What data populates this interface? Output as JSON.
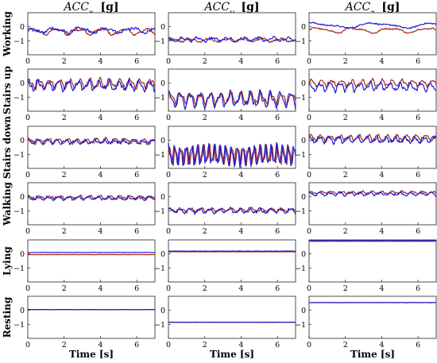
{
  "chart_data": {
    "type": "line",
    "layout": "6x3 grid of line subplots",
    "column_titles": [
      {
        "base": "ACC",
        "sub": "x",
        "unit": "[g]"
      },
      {
        "base": "ACC",
        "sub": "y",
        "unit": "[g]"
      },
      {
        "base": "ACC",
        "sub": "z",
        "unit": "[g]"
      }
    ],
    "row_labels": [
      "Working",
      "Stairs up",
      "Stairs down",
      "Walking",
      "Lying",
      "Resting"
    ],
    "xlabel": "Time [s]",
    "xlim": [
      0,
      7
    ],
    "xticks": [
      0,
      2,
      4,
      6
    ],
    "ylim": [
      -2,
      1
    ],
    "yticks": [
      0,
      -1
    ],
    "grid": false,
    "series_colors": [
      "#a62a1e",
      "#1c1cd6"
    ],
    "panels": [
      [
        {
          "series": [
            {
              "mean": -0.35,
              "amp": 0.18,
              "freq": 0.8,
              "noise": 0.08,
              "phase": 0.0
            },
            {
              "mean": -0.25,
              "amp": 0.15,
              "freq": 0.7,
              "noise": 0.1,
              "phase": 1.5
            }
          ]
        },
        {
          "series": [
            {
              "mean": -0.95,
              "amp": 0.1,
              "freq": 1.0,
              "noise": 0.07,
              "phase": 0.4
            },
            {
              "mean": -0.9,
              "amp": 0.12,
              "freq": 1.2,
              "noise": 0.08,
              "phase": 2.0
            }
          ]
        },
        {
          "series": [
            {
              "mean": -0.25,
              "amp": 0.15,
              "freq": 0.5,
              "noise": 0.05,
              "phase": 0.0
            },
            {
              "mean": 0.1,
              "amp": 0.15,
              "freq": 0.3,
              "noise": 0.05,
              "phase": 1.0
            }
          ]
        }
      ],
      [
        {
          "series": [
            {
              "mean": -0.05,
              "amp": 0.28,
              "freq": 1.8,
              "noise": 0.1,
              "phase": 0.5
            },
            {
              "mean": -0.15,
              "amp": 0.3,
              "freq": 1.8,
              "noise": 0.12,
              "phase": 1.4
            }
          ]
        },
        {
          "series": [
            {
              "mean": -1.1,
              "amp": 0.35,
              "freq": 1.8,
              "noise": 0.1,
              "phase": 0.2
            },
            {
              "mean": -1.15,
              "amp": 0.45,
              "freq": 1.8,
              "noise": 0.12,
              "phase": 0.9
            }
          ]
        },
        {
          "series": [
            {
              "mean": 0.0,
              "amp": 0.2,
              "freq": 1.8,
              "noise": 0.08,
              "phase": 0.0
            },
            {
              "mean": -0.25,
              "amp": 0.25,
              "freq": 1.8,
              "noise": 0.12,
              "phase": 1.2
            }
          ]
        }
      ],
      [
        {
          "series": [
            {
              "mean": -0.05,
              "amp": 0.15,
              "freq": 1.9,
              "noise": 0.08,
              "phase": 0.3
            },
            {
              "mean": -0.1,
              "amp": 0.12,
              "freq": 1.9,
              "noise": 0.08,
              "phase": 1.6
            }
          ]
        },
        {
          "series": [
            {
              "mean": -1.05,
              "amp": 0.55,
              "freq": 3.2,
              "noise": 0.08,
              "phase": 0.0
            },
            {
              "mean": -1.05,
              "amp": 0.6,
              "freq": 3.2,
              "noise": 0.08,
              "phase": 1.1
            }
          ]
        },
        {
          "series": [
            {
              "mean": 0.15,
              "amp": 0.18,
              "freq": 1.9,
              "noise": 0.08,
              "phase": 0.0
            },
            {
              "mean": 0.05,
              "amp": 0.2,
              "freq": 1.9,
              "noise": 0.1,
              "phase": 1.3
            }
          ]
        }
      ],
      [
        {
          "series": [
            {
              "mean": -0.05,
              "amp": 0.1,
              "freq": 1.8,
              "noise": 0.06,
              "phase": 0.4
            },
            {
              "mean": -0.1,
              "amp": 0.1,
              "freq": 1.8,
              "noise": 0.07,
              "phase": 1.6
            }
          ]
        },
        {
          "series": [
            {
              "mean": -0.95,
              "amp": 0.12,
              "freq": 1.8,
              "noise": 0.07,
              "phase": 0.0
            },
            {
              "mean": -1.0,
              "amp": 0.14,
              "freq": 1.8,
              "noise": 0.08,
              "phase": 1.0
            }
          ]
        },
        {
          "series": [
            {
              "mean": 0.3,
              "amp": 0.08,
              "freq": 1.8,
              "noise": 0.05,
              "phase": 0.0
            },
            {
              "mean": 0.2,
              "amp": 0.1,
              "freq": 1.8,
              "noise": 0.06,
              "phase": 1.2
            }
          ]
        }
      ],
      [
        {
          "series": [
            {
              "mean": -0.05,
              "amp": 0.0,
              "freq": 0.0,
              "noise": 0.005,
              "phase": 0.0
            },
            {
              "mean": 0.1,
              "amp": 0.0,
              "freq": 0.0,
              "noise": 0.01,
              "phase": 0.0
            }
          ]
        },
        {
          "series": [
            {
              "mean": 0.15,
              "amp": 0.0,
              "freq": 0.0,
              "noise": 0.005,
              "phase": 0.0
            },
            {
              "mean": 0.2,
              "amp": 0.0,
              "freq": 0.0,
              "noise": 0.015,
              "phase": 0.0
            }
          ]
        },
        {
          "series": [
            {
              "mean": 0.9,
              "amp": 0.0,
              "freq": 0.0,
              "noise": 0.005,
              "phase": 0.0
            },
            {
              "mean": 0.95,
              "amp": 0.0,
              "freq": 0.0,
              "noise": 0.015,
              "phase": 0.0
            }
          ]
        }
      ],
      [
        {
          "series": [
            {
              "mean": 0.05,
              "amp": 0.0,
              "freq": 0.0,
              "noise": 0.005,
              "phase": 0.0
            },
            {
              "mean": 0.05,
              "amp": 0.0,
              "freq": 0.0,
              "noise": 0.01,
              "phase": 0.0
            }
          ]
        },
        {
          "series": [
            {
              "mean": -0.85,
              "amp": 0.0,
              "freq": 0.0,
              "noise": 0.005,
              "phase": 0.0
            },
            {
              "mean": -0.85,
              "amp": 0.0,
              "freq": 0.0,
              "noise": 0.012,
              "phase": 0.0
            }
          ]
        },
        {
          "series": [
            {
              "mean": 0.55,
              "amp": 0.0,
              "freq": 0.0,
              "noise": 0.005,
              "phase": 0.0
            },
            {
              "mean": 0.55,
              "amp": 0.0,
              "freq": 0.0,
              "noise": 0.01,
              "phase": 0.0
            }
          ]
        }
      ]
    ]
  }
}
